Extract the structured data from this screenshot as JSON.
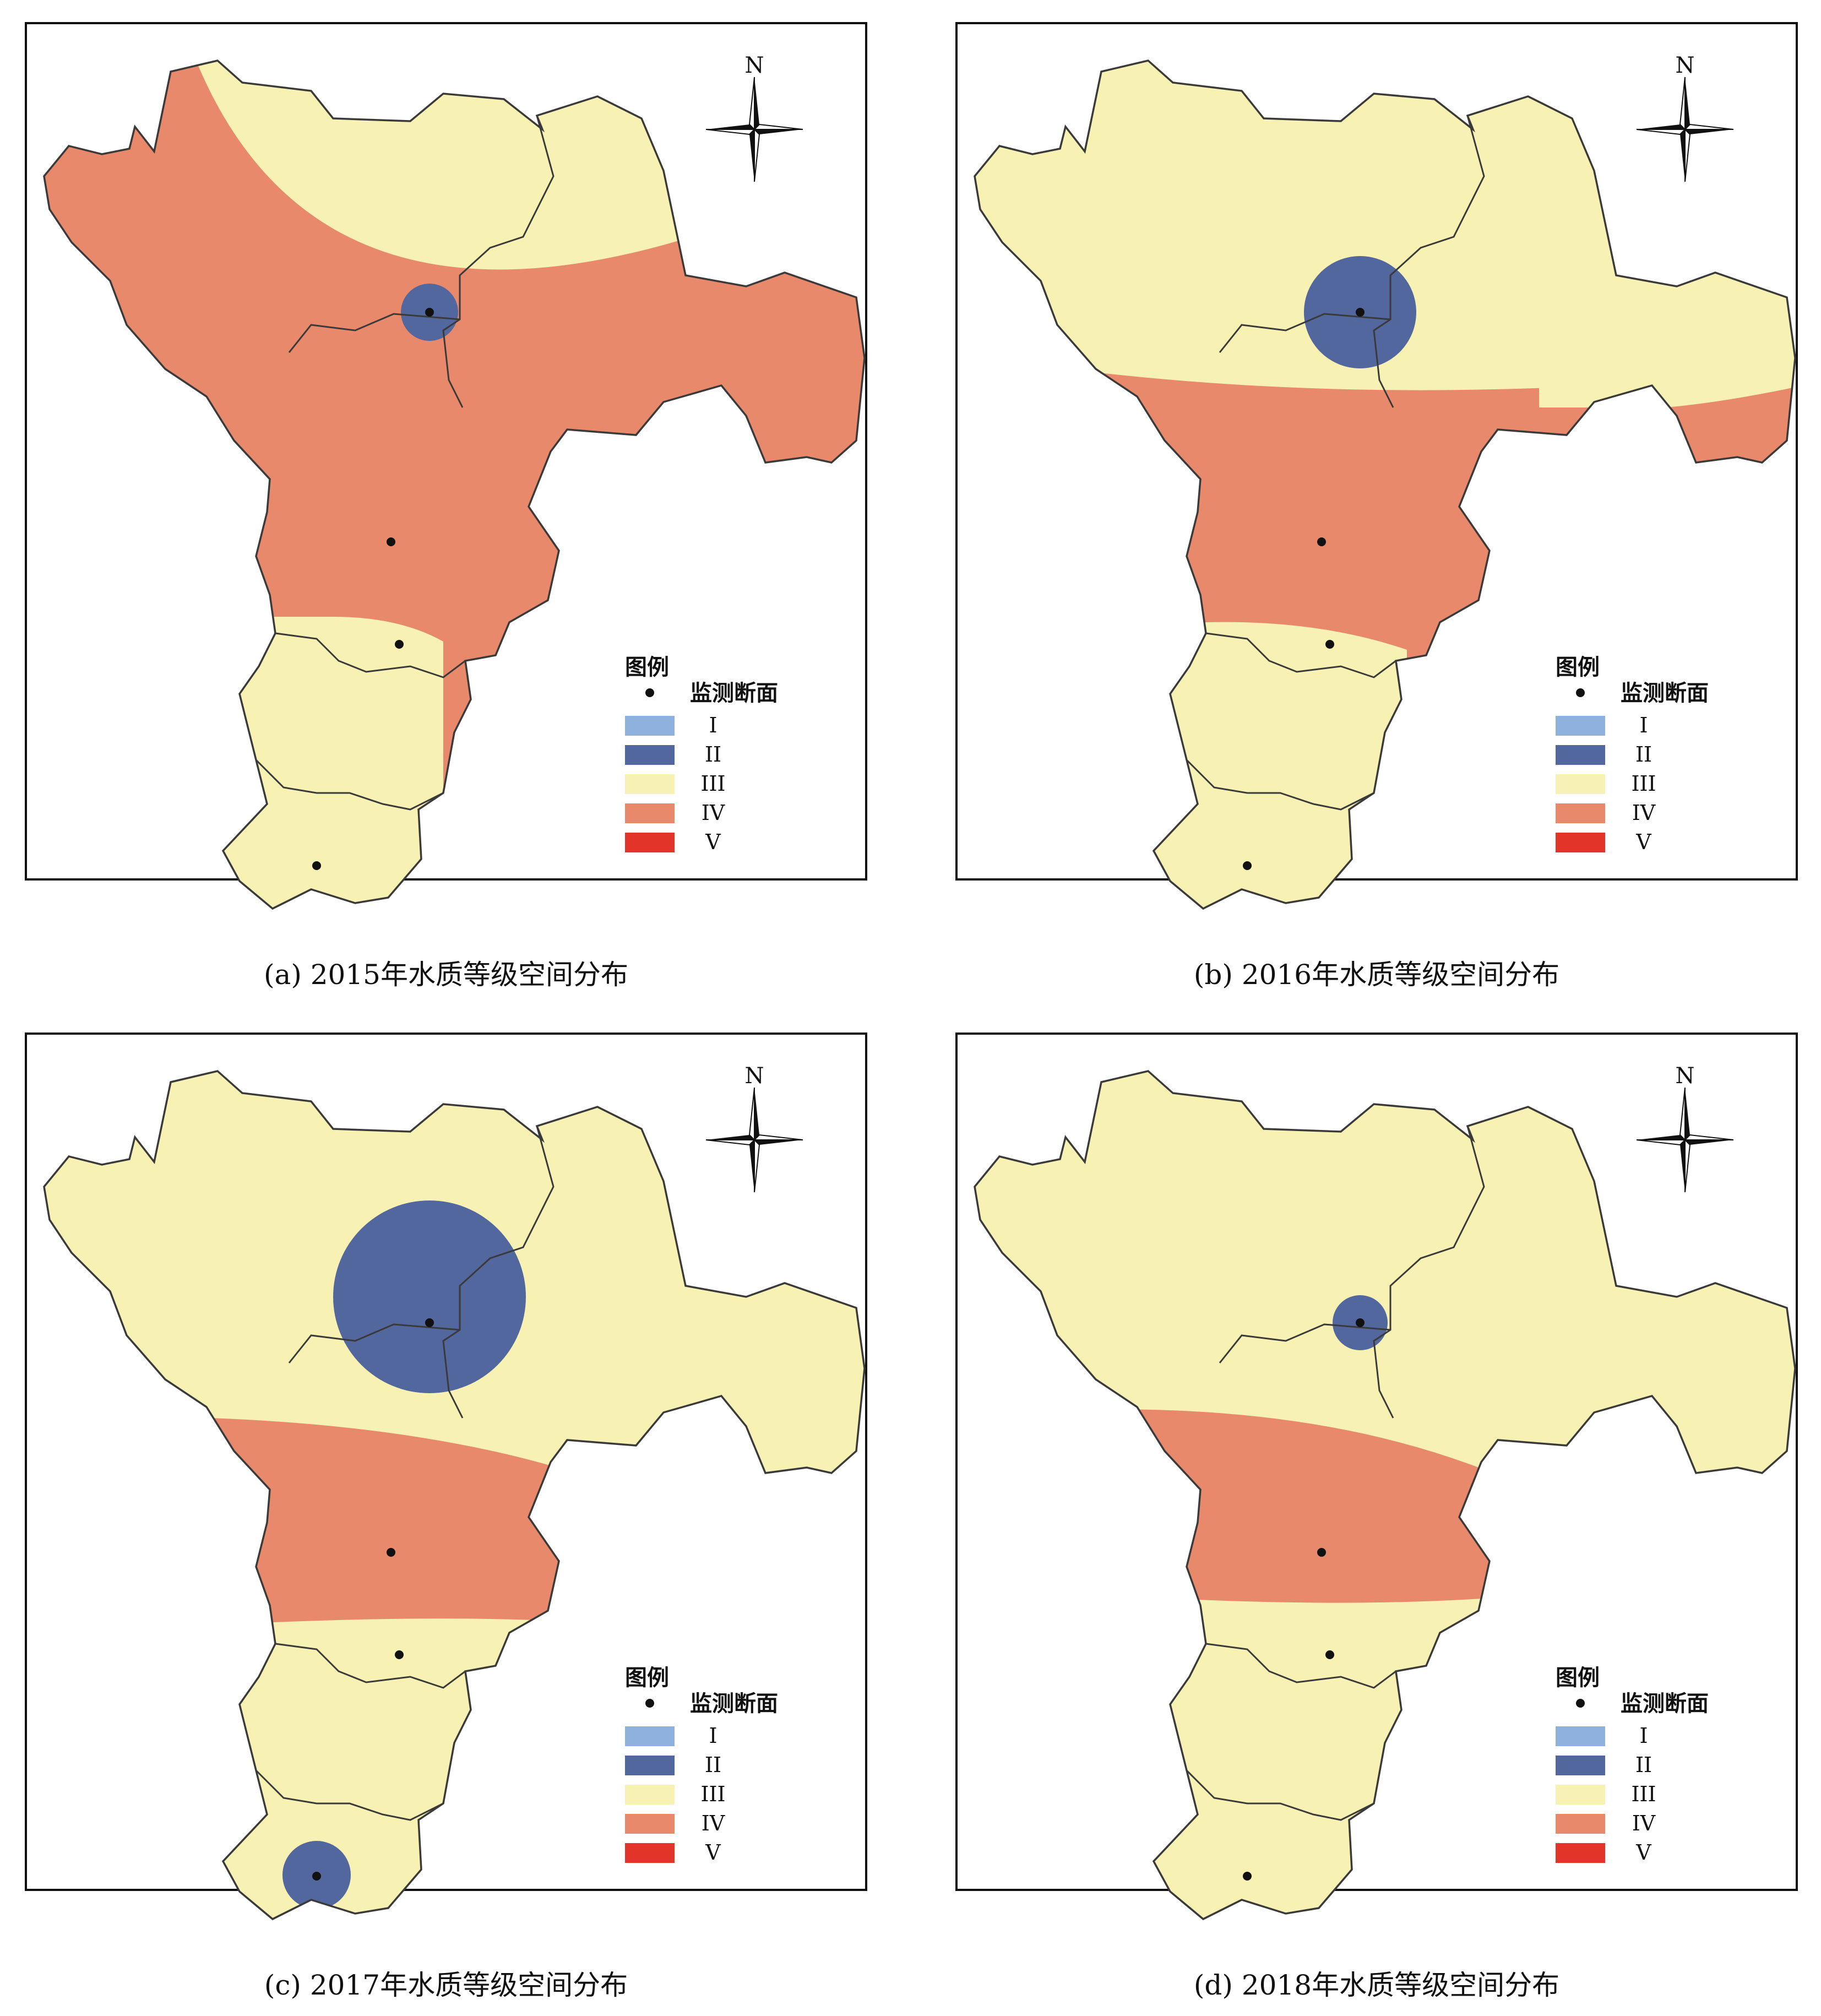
{
  "colors": {
    "grade_I": "#8eb1dd",
    "grade_II": "#53679f",
    "grade_III": "#f7f1b3",
    "grade_IV": "#e9896b",
    "grade_V": "#e3342a",
    "boundary": "#3a3a3a",
    "frame": "#111111"
  },
  "legend": {
    "title": "图例",
    "station_label": "监测断面",
    "grades": [
      "I",
      "II",
      "III",
      "IV",
      "V"
    ]
  },
  "north_label": "N",
  "panels": [
    {
      "caption": "(a) 2015年水质等级空间分布"
    },
    {
      "caption": "(b) 2016年水质等级空间分布"
    },
    {
      "caption": "(c) 2017年水质等级空间分布"
    },
    {
      "caption": "(d) 2018年水质等级空间分布"
    }
  ]
}
